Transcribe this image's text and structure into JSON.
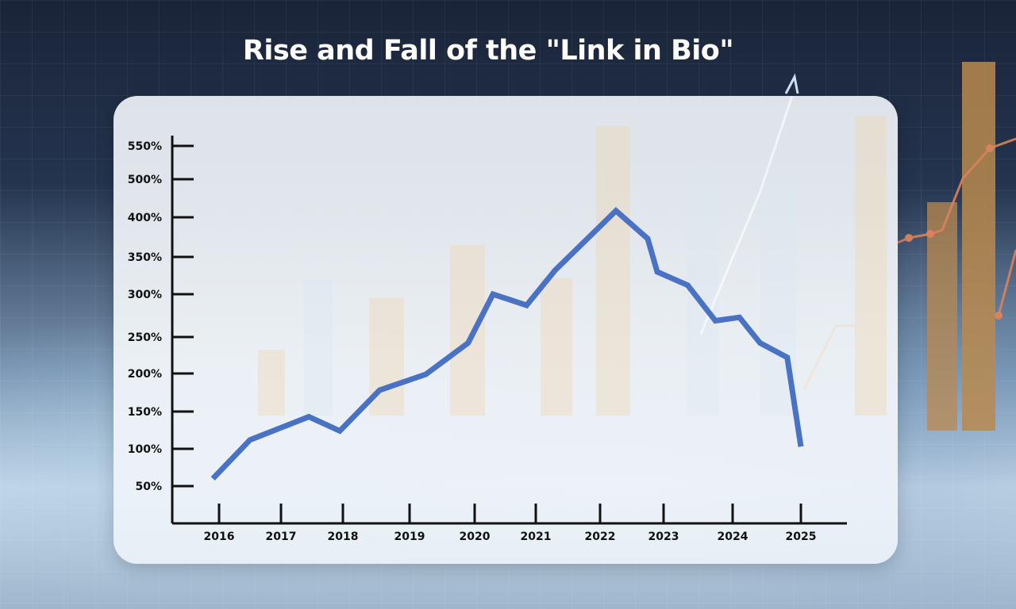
{
  "title": "Rise and Fall of the \"Link in Bio\"",
  "colors": {
    "line": "#4a72c4",
    "axis": "#111111",
    "title": "#ffffff"
  },
  "chart_data": {
    "type": "line",
    "title": "Rise and Fall of the \"Link in Bio\"",
    "xlabel": "",
    "ylabel": "",
    "grid": false,
    "legend": "none",
    "x_ticks": [
      "2016",
      "2017",
      "2018",
      "2019",
      "2020",
      "2021",
      "2022",
      "2023",
      "2024",
      "2025"
    ],
    "y_ticks": [
      "50%",
      "100%",
      "150%",
      "200%",
      "250%",
      "300%",
      "350%",
      "400%",
      "500%",
      "550%"
    ],
    "xlim": [
      2015.75,
      2025.75
    ],
    "series": [
      {
        "x": [
          2015.9,
          2016.5,
          2017.45,
          2017.95,
          2018.55,
          2019.25,
          2019.9,
          2020.3,
          2020.85,
          2021.3,
          2022.25,
          2022.75,
          2022.9,
          2023.35,
          2023.75,
          2024.1,
          2024.4,
          2024.8,
          2025.0
        ],
        "y": [
          60,
          112,
          143,
          124,
          178,
          199,
          242,
          300,
          287,
          332,
          417,
          373,
          330,
          312,
          269,
          273,
          242,
          222,
          103
        ]
      }
    ]
  }
}
